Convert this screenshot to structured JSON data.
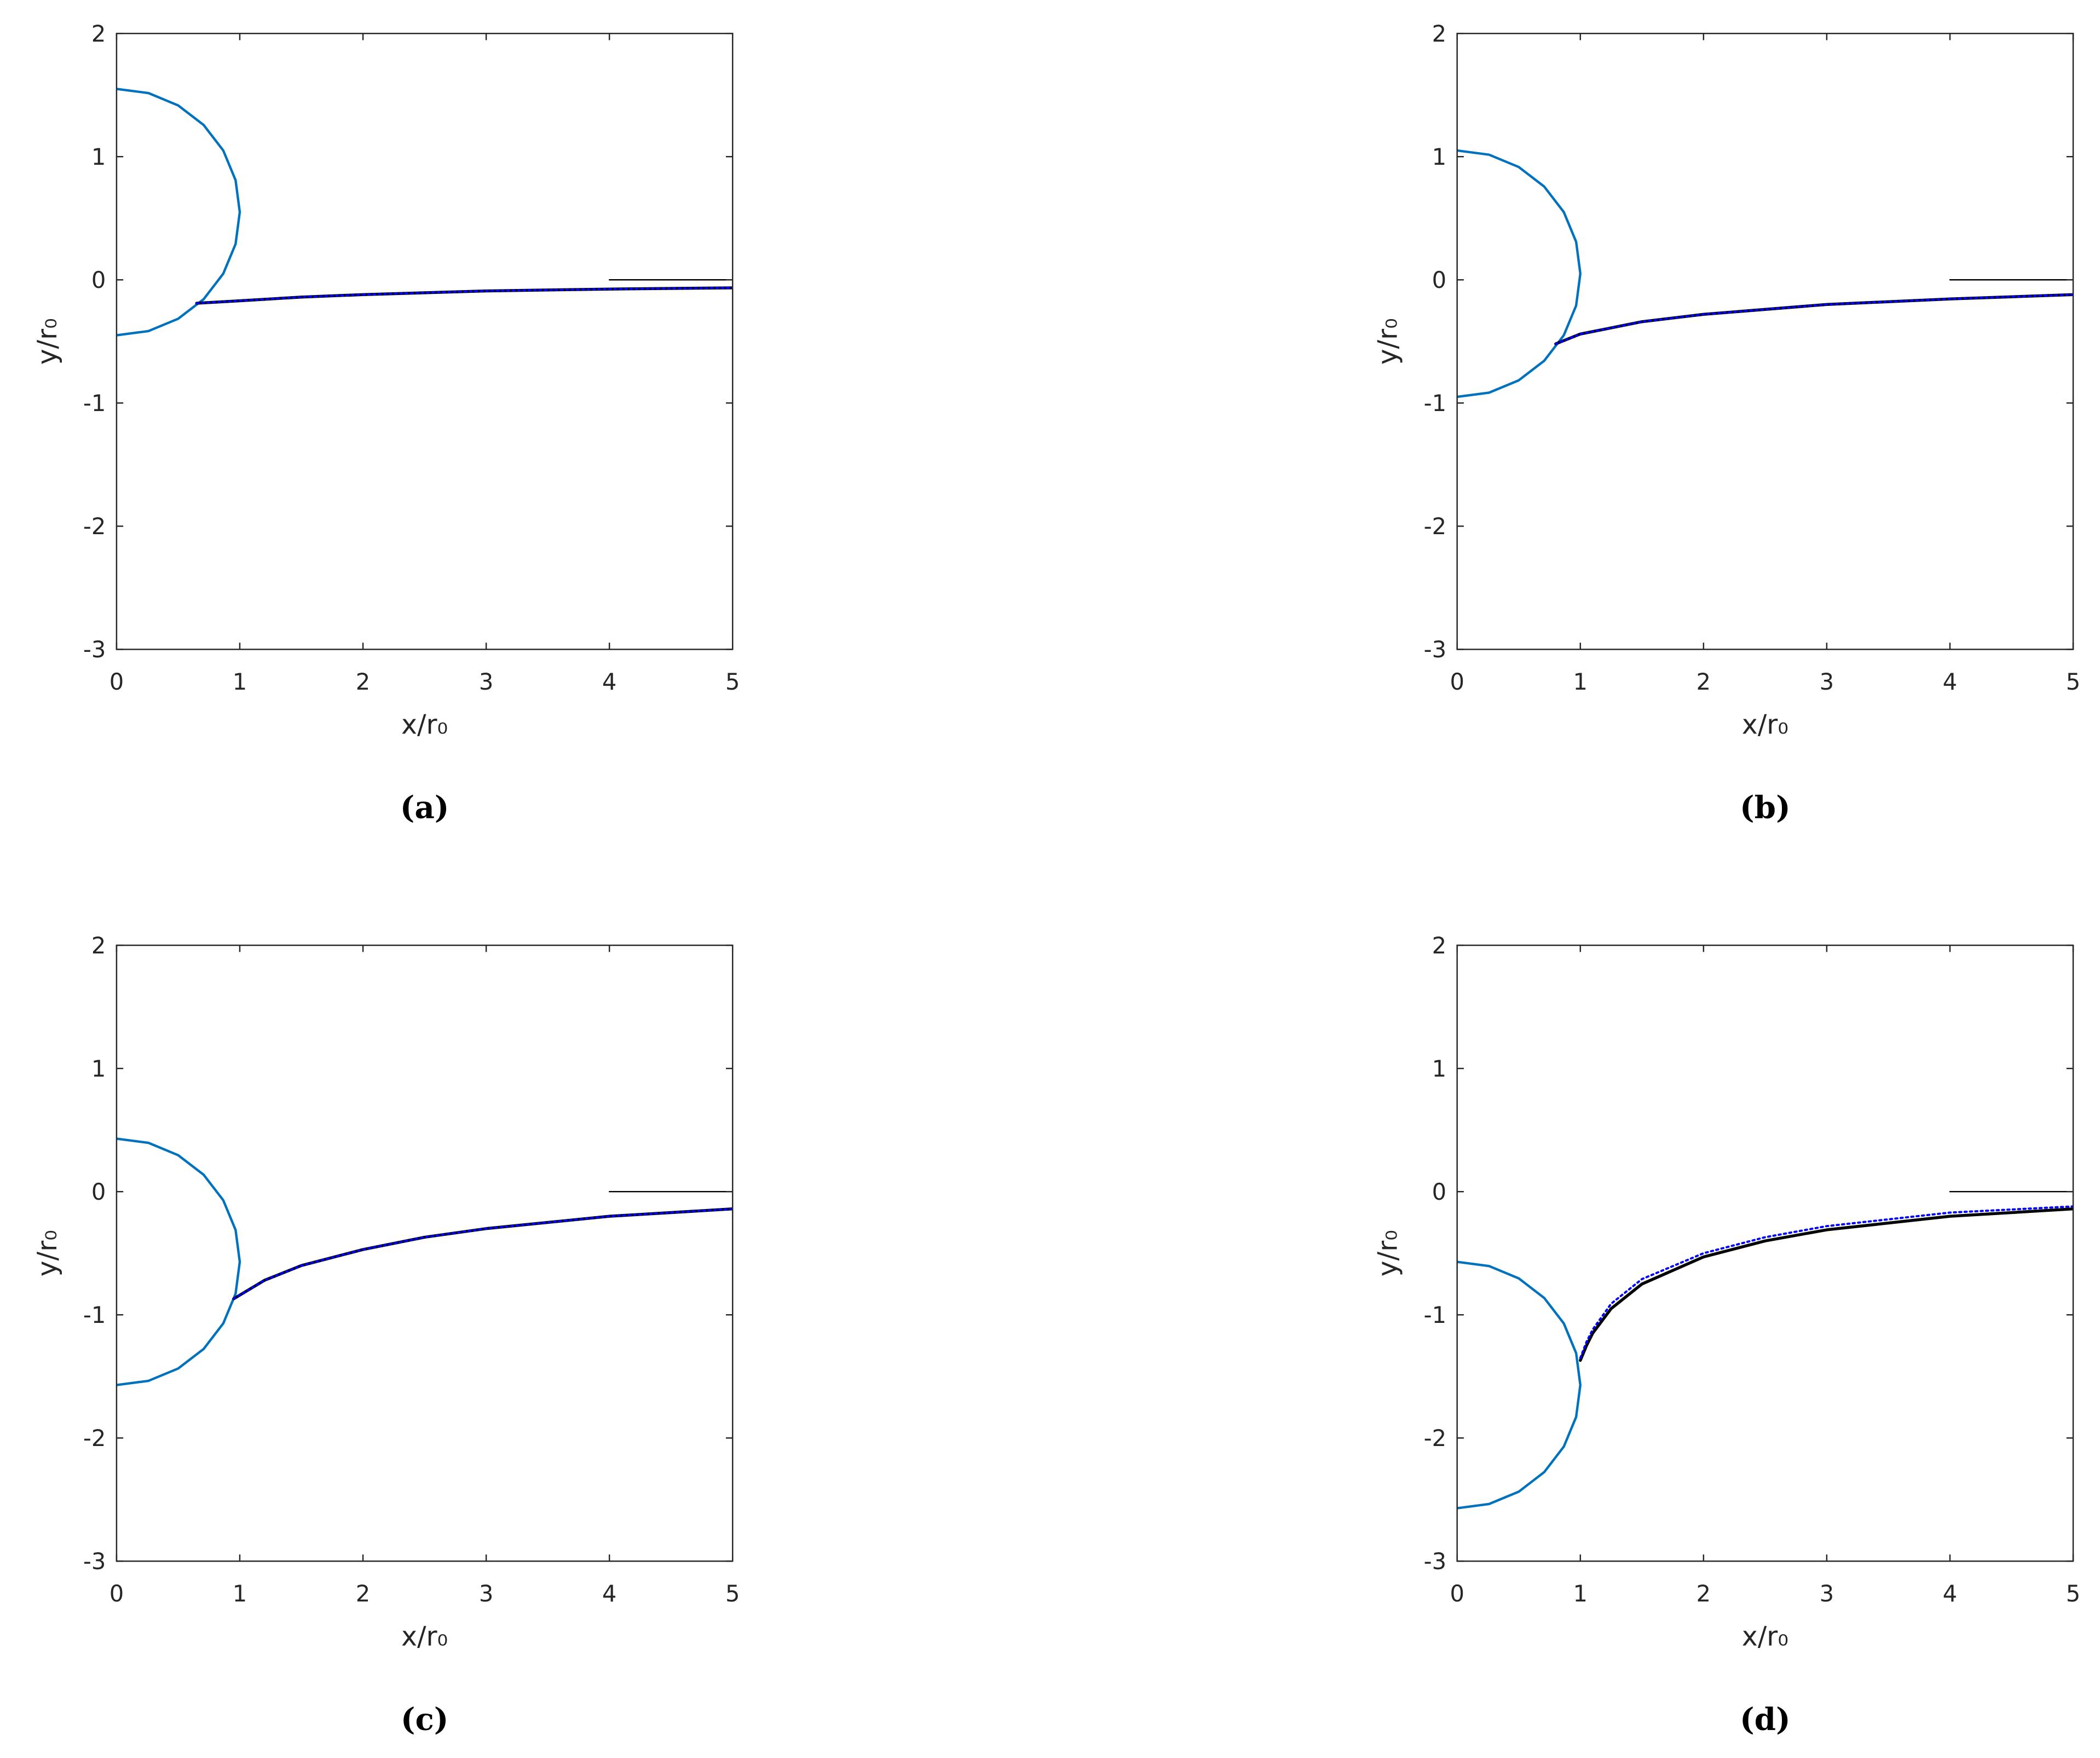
{
  "chart_data": [
    {
      "type": "line",
      "caption": "(a)",
      "xlabel": "x/r₀",
      "ylabel": "y/r₀",
      "xlim": [
        0,
        5
      ],
      "ylim": [
        -3,
        2
      ],
      "xticks": [
        0,
        1,
        2,
        3,
        4,
        5
      ],
      "yticks": [
        -3,
        -2,
        -1,
        0,
        1,
        2
      ],
      "series": [
        {
          "color": "#0072bd",
          "style": "solid",
          "x": [
            0,
            0.259,
            0.5,
            0.707,
            0.866,
            0.966,
            1,
            0.966,
            0.866,
            0.707,
            0.5,
            0.259,
            0
          ],
          "values": [
            -0.45,
            -0.416,
            -0.316,
            -0.157,
            0.05,
            0.291,
            0.55,
            0.809,
            1.05,
            1.257,
            1.416,
            1.516,
            1.55
          ]
        },
        {
          "color": "#000000",
          "style": "solid",
          "x": [
            0.65,
            1,
            1.5,
            2,
            3,
            4,
            5
          ],
          "values": [
            -0.19,
            -0.17,
            -0.14,
            -0.12,
            -0.09,
            -0.075,
            -0.065
          ]
        },
        {
          "color": "#0000ff",
          "style": "dotted",
          "x": [
            0.65,
            1,
            1.5,
            2,
            3,
            4,
            5
          ],
          "values": [
            -0.19,
            -0.17,
            -0.14,
            -0.12,
            -0.09,
            -0.075,
            -0.065
          ]
        },
        {
          "color": "#000000",
          "style": "thin",
          "x": [
            4,
            5
          ],
          "values": [
            0,
            0
          ]
        }
      ]
    },
    {
      "type": "line",
      "caption": "(b)",
      "xlabel": "x/r₀",
      "ylabel": "y/r₀",
      "xlim": [
        0,
        5
      ],
      "ylim": [
        -3,
        2
      ],
      "xticks": [
        0,
        1,
        2,
        3,
        4,
        5
      ],
      "yticks": [
        -3,
        -2,
        -1,
        0,
        1,
        2
      ],
      "series": [
        {
          "color": "#0072bd",
          "style": "solid",
          "x": [
            0,
            0.259,
            0.5,
            0.707,
            0.866,
            0.966,
            1,
            0.966,
            0.866,
            0.707,
            0.5,
            0.259,
            0
          ],
          "values": [
            -0.95,
            -0.916,
            -0.816,
            -0.657,
            -0.45,
            -0.209,
            0.05,
            0.309,
            0.55,
            0.757,
            0.916,
            1.016,
            1.05
          ]
        },
        {
          "color": "#000000",
          "style": "solid",
          "x": [
            0.8,
            1,
            1.5,
            2,
            3,
            4,
            5
          ],
          "values": [
            -0.52,
            -0.44,
            -0.34,
            -0.28,
            -0.2,
            -0.155,
            -0.12
          ]
        },
        {
          "color": "#0000ff",
          "style": "dotted",
          "x": [
            0.8,
            1,
            1.5,
            2,
            3,
            4,
            5
          ],
          "values": [
            -0.52,
            -0.44,
            -0.34,
            -0.28,
            -0.2,
            -0.155,
            -0.12
          ]
        },
        {
          "color": "#000000",
          "style": "thin",
          "x": [
            4,
            5
          ],
          "values": [
            0,
            0
          ]
        }
      ]
    },
    {
      "type": "line",
      "caption": "(c)",
      "xlabel": "x/r₀",
      "ylabel": "y/r₀",
      "xlim": [
        0,
        5
      ],
      "ylim": [
        -3,
        2
      ],
      "xticks": [
        0,
        1,
        2,
        3,
        4,
        5
      ],
      "yticks": [
        -3,
        -2,
        -1,
        0,
        1,
        2
      ],
      "series": [
        {
          "color": "#0072bd",
          "style": "solid",
          "x": [
            0,
            0.259,
            0.5,
            0.707,
            0.866,
            0.966,
            1,
            0.966,
            0.866,
            0.707,
            0.5,
            0.259,
            0
          ],
          "values": [
            -1.57,
            -1.536,
            -1.436,
            -1.277,
            -1.07,
            -0.829,
            -0.57,
            -0.311,
            -0.07,
            0.137,
            0.296,
            0.396,
            0.43
          ]
        },
        {
          "color": "#000000",
          "style": "solid",
          "x": [
            0.95,
            1.2,
            1.5,
            2,
            2.5,
            3,
            4,
            5
          ],
          "values": [
            -0.87,
            -0.72,
            -0.6,
            -0.47,
            -0.37,
            -0.3,
            -0.2,
            -0.14
          ]
        },
        {
          "color": "#0000ff",
          "style": "dotted",
          "x": [
            0.95,
            1.2,
            1.5,
            2,
            2.5,
            3,
            4,
            5
          ],
          "values": [
            -0.87,
            -0.72,
            -0.6,
            -0.47,
            -0.37,
            -0.3,
            -0.2,
            -0.14
          ]
        },
        {
          "color": "#000000",
          "style": "thin",
          "x": [
            4,
            5
          ],
          "values": [
            0,
            0
          ]
        }
      ]
    },
    {
      "type": "line",
      "caption": "(d)",
      "xlabel": "x/r₀",
      "ylabel": "y/r₀",
      "xlim": [
        0,
        5
      ],
      "ylim": [
        -3,
        2
      ],
      "xticks": [
        0,
        1,
        2,
        3,
        4,
        5
      ],
      "yticks": [
        -3,
        -2,
        -1,
        0,
        1,
        2
      ],
      "series": [
        {
          "color": "#0072bd",
          "style": "solid",
          "x": [
            0,
            0.259,
            0.5,
            0.707,
            0.866,
            0.966,
            1,
            0.966,
            0.866,
            0.707,
            0.5,
            0.259,
            0
          ],
          "values": [
            -2.57,
            -2.536,
            -2.436,
            -2.277,
            -2.07,
            -1.829,
            -1.57,
            -1.311,
            -1.07,
            -0.863,
            -0.704,
            -0.604,
            -0.57
          ]
        },
        {
          "color": "#000000",
          "style": "solid",
          "x": [
            1,
            1.05,
            1.1,
            1.25,
            1.5,
            2,
            2.5,
            3,
            4,
            5
          ],
          "values": [
            -1.37,
            -1.25,
            -1.15,
            -0.95,
            -0.75,
            -0.53,
            -0.4,
            -0.31,
            -0.2,
            -0.14
          ]
        },
        {
          "color": "#0000ff",
          "style": "dotted",
          "x": [
            1,
            1.05,
            1.1,
            1.25,
            1.5,
            2,
            2.5,
            3,
            4,
            5
          ],
          "values": [
            -1.35,
            -1.22,
            -1.12,
            -0.91,
            -0.71,
            -0.5,
            -0.37,
            -0.28,
            -0.17,
            -0.12
          ]
        },
        {
          "color": "#000000",
          "style": "thin",
          "x": [
            4,
            5
          ],
          "values": [
            0,
            0
          ]
        }
      ]
    }
  ]
}
